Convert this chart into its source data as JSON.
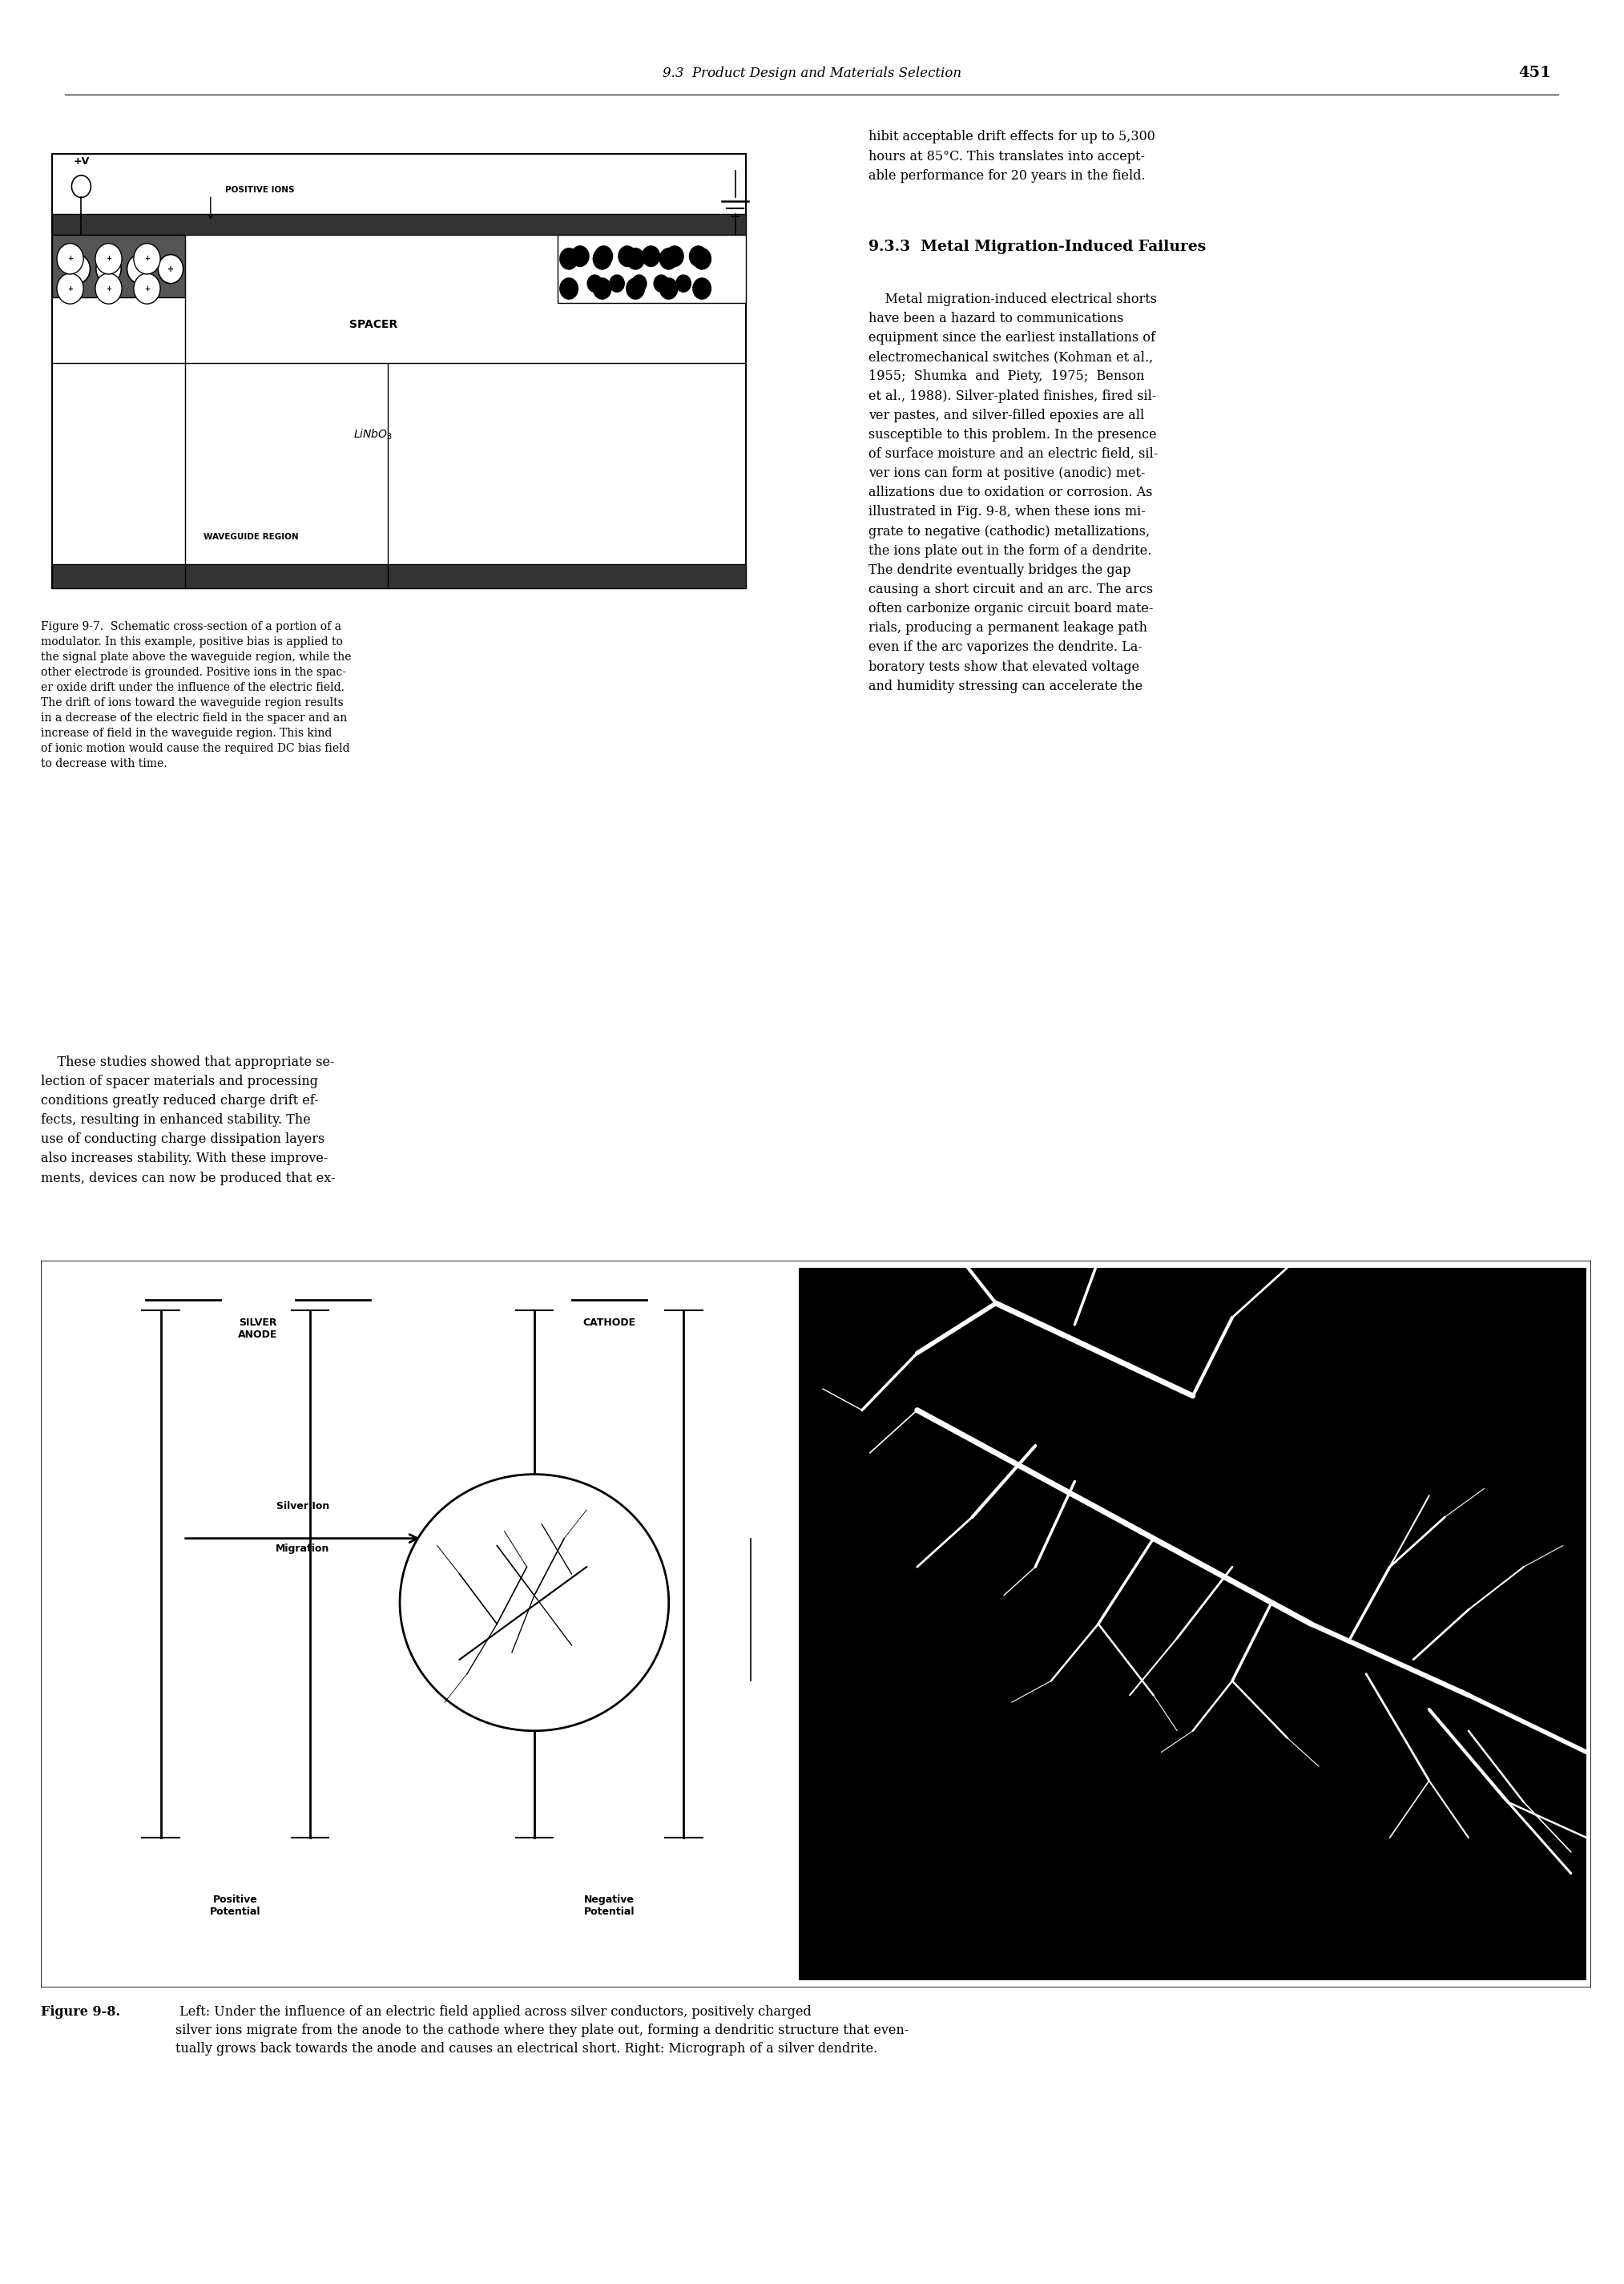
{
  "page_header": "9.3  Product Design and Materials Selection",
  "page_number": "451",
  "background_color": "#ffffff",
  "text_color": "#000000",
  "top_left_para": "hibit acceptable drift effects for up to 5,300\nhours at 85°C. This translates into accept-\nable performance for 20 years in the field.",
  "section_header": "9.3.3  Metal Migration-Induced Failures",
  "right_col_para": "    Metal migration-induced electrical shorts\nhave been a hazard to communications\nequipment since the earliest installations of\nelectromechanical switches (Kohman et al.,\n1955;  Shumka  and  Piety,  1975;  Benson\net al., 1988). Silver-plated finishes, fired sil-\nver pastes, and silver-filled epoxies are all\nsusceptible to this problem. In the presence\nof surface moisture and an electric field, sil-\nver ions can form at positive (anodic) met-\nallizations due to oxidation or corrosion. As\nillustrated in Fig. 9-8, when these ions mi-\ngrate to negative (cathodic) metallizations,\nthe ions plate out in the form of a dendrite.\nThe dendrite eventually bridges the gap\ncausing a short circuit and an arc. The arcs\noften carbonize organic circuit board mate-\nrials, producing a permanent leakage path\neven if the arc vaporizes the dendrite. La-\nboratory tests show that elevated voltage\nand humidity stressing can accelerate the",
  "fig7_caption": "Figure 9-7.  Schematic cross-section of a portion of a\nmodulator. In this example, positive bias is applied to\nthe signal plate above the waveguide region, while the\nother electrode is grounded. Positive ions in the spac-\ner oxide drift under the influence of the electric field.\nThe drift of ions toward the waveguide region results\nin a decrease of the electric field in the spacer and an\nincrease of field in the waveguide region. This kind\nof ionic motion would cause the required DC bias field\nto decrease with time.",
  "left_col_para2": "    These studies showed that appropriate se-\nlection of spacer materials and processing\nconditions greatly reduced charge drift ef-\nfects, resulting in enhanced stability. The\nuse of conducting charge dissipation layers\nalso increases stability. With these improve-\nments, devices can now be produced that ex-",
  "figure_label": "Figure 9-8.",
  "figure_caption": " Left: Under the influence of an electric field applied across silver conductors, positively charged\nsilver ions migrate from the anode to the cathode where they plate out, forming a dendritic structure that even-\ntually grows back towards the anode and causes an electrical short. Right: Micrograph of a silver dendrite."
}
